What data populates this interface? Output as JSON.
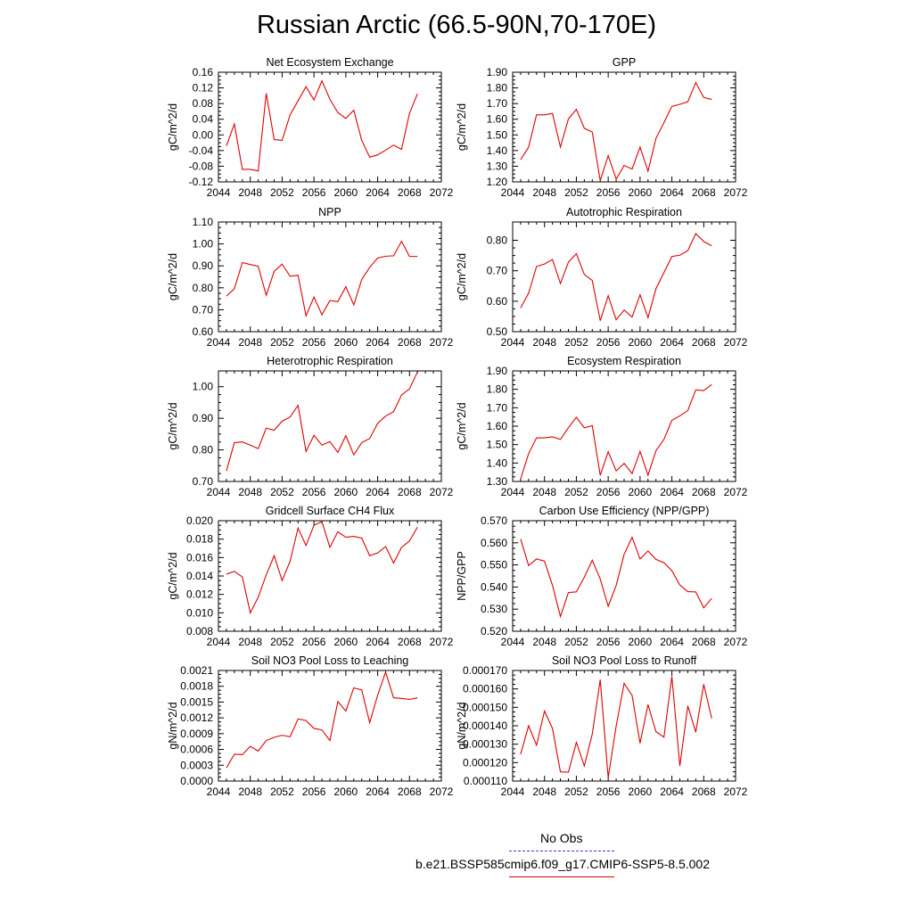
{
  "title": "Russian Arctic (66.5-90N,70-170E)",
  "colors": {
    "model": "#e00000",
    "obs": "#3a3ad6"
  },
  "legend": {
    "obs_label": "No Obs",
    "model_label": "b.e21.BSSP585cmip6.f09_g17.CMIP6-SSP5-8.5.002"
  },
  "chart_data": [
    {
      "type": "line",
      "title": "Net Ecosystem Exchange",
      "xlabel": "",
      "ylabel": "gC/m^2/d",
      "xlim": [
        2044,
        2072
      ],
      "ylim": [
        -0.12,
        0.16
      ],
      "xticks": [
        "2044",
        "2048",
        "2052",
        "2056",
        "2060",
        "2064",
        "2068",
        "2072"
      ],
      "yticks": [
        "-0.12",
        "-0.08",
        "-0.04",
        "0.00",
        "0.04",
        "0.08",
        "0.12",
        "0.16"
      ],
      "x": [
        2045,
        2046,
        2047,
        2048,
        2049,
        2050,
        2051,
        2052,
        2053,
        2054,
        2055,
        2056,
        2057,
        2058,
        2059,
        2060,
        2061,
        2062,
        2063,
        2064,
        2065,
        2066,
        2067,
        2068,
        2069
      ],
      "series": [
        {
          "values": [
            -0.028,
            0.028,
            -0.088,
            -0.088,
            -0.092,
            0.106,
            -0.012,
            -0.014,
            0.051,
            0.087,
            0.123,
            0.089,
            0.138,
            0.091,
            0.057,
            0.042,
            0.063,
            -0.014,
            -0.057,
            -0.051,
            -0.039,
            -0.026,
            -0.037,
            0.055,
            0.105
          ]
        }
      ]
    },
    {
      "type": "line",
      "title": "GPP",
      "xlabel": "",
      "ylabel": "gC/m^2/d",
      "xlim": [
        2044,
        2072
      ],
      "ylim": [
        1.2,
        1.9
      ],
      "xticks": [
        "2044",
        "2048",
        "2052",
        "2056",
        "2060",
        "2064",
        "2068",
        "2072"
      ],
      "yticks": [
        "1.20",
        "1.30",
        "1.40",
        "1.50",
        "1.60",
        "1.70",
        "1.80",
        "1.90"
      ],
      "x": [
        2045,
        2046,
        2047,
        2048,
        2049,
        2050,
        2051,
        2052,
        2053,
        2054,
        2055,
        2056,
        2057,
        2058,
        2059,
        2060,
        2061,
        2062,
        2063,
        2064,
        2065,
        2066,
        2067,
        2068,
        2069
      ],
      "series": [
        {
          "values": [
            1.342,
            1.422,
            1.628,
            1.628,
            1.637,
            1.422,
            1.602,
            1.663,
            1.542,
            1.518,
            1.208,
            1.368,
            1.218,
            1.305,
            1.282,
            1.422,
            1.268,
            1.478,
            1.578,
            1.682,
            1.695,
            1.711,
            1.834,
            1.739,
            1.726
          ]
        }
      ]
    },
    {
      "type": "line",
      "title": "NPP",
      "xlabel": "",
      "ylabel": "gC/m^2/d",
      "xlim": [
        2044,
        2072
      ],
      "ylim": [
        0.6,
        1.1
      ],
      "xticks": [
        "2044",
        "2048",
        "2052",
        "2056",
        "2060",
        "2064",
        "2068",
        "2072"
      ],
      "yticks": [
        "0.60",
        "0.70",
        "0.80",
        "0.90",
        "1.00",
        "1.10"
      ],
      "x": [
        2045,
        2046,
        2047,
        2048,
        2049,
        2050,
        2051,
        2052,
        2053,
        2054,
        2055,
        2056,
        2057,
        2058,
        2059,
        2060,
        2061,
        2062,
        2063,
        2064,
        2065,
        2066,
        2067,
        2068,
        2069
      ],
      "series": [
        {
          "values": [
            0.762,
            0.796,
            0.915,
            0.906,
            0.898,
            0.766,
            0.875,
            0.908,
            0.853,
            0.857,
            0.672,
            0.758,
            0.677,
            0.742,
            0.737,
            0.805,
            0.722,
            0.838,
            0.893,
            0.936,
            0.944,
            0.946,
            1.012,
            0.943,
            0.943
          ]
        }
      ]
    },
    {
      "type": "line",
      "title": "Autotrophic Respiration",
      "xlabel": "",
      "ylabel": "gC/m^2/d",
      "xlim": [
        2044,
        2072
      ],
      "ylim": [
        0.5,
        0.86
      ],
      "xticks": [
        "2044",
        "2048",
        "2052",
        "2056",
        "2060",
        "2064",
        "2068",
        "2072"
      ],
      "yticks": [
        "0.50",
        "0.60",
        "0.70",
        "0.80"
      ],
      "x": [
        2045,
        2046,
        2047,
        2048,
        2049,
        2050,
        2051,
        2052,
        2053,
        2054,
        2055,
        2056,
        2057,
        2058,
        2059,
        2060,
        2061,
        2062,
        2063,
        2064,
        2065,
        2066,
        2067,
        2068,
        2069
      ],
      "series": [
        {
          "values": [
            0.578,
            0.626,
            0.714,
            0.722,
            0.737,
            0.658,
            0.728,
            0.756,
            0.688,
            0.668,
            0.536,
            0.618,
            0.539,
            0.571,
            0.548,
            0.621,
            0.546,
            0.641,
            0.694,
            0.747,
            0.751,
            0.766,
            0.822,
            0.796,
            0.782
          ]
        }
      ]
    },
    {
      "type": "line",
      "title": "Heterotrophic Respiration",
      "xlabel": "",
      "ylabel": "gC/m^2/d",
      "xlim": [
        2044,
        2072
      ],
      "ylim": [
        0.7,
        1.05
      ],
      "xticks": [
        "2044",
        "2048",
        "2052",
        "2056",
        "2060",
        "2064",
        "2068",
        "2072"
      ],
      "yticks": [
        "0.70",
        "0.80",
        "0.90",
        "1.00"
      ],
      "x": [
        2045,
        2046,
        2047,
        2048,
        2049,
        2050,
        2051,
        2052,
        2053,
        2054,
        2055,
        2056,
        2057,
        2058,
        2059,
        2060,
        2061,
        2062,
        2063,
        2064,
        2065,
        2066,
        2067,
        2068,
        2069
      ],
      "series": [
        {
          "values": [
            0.733,
            0.823,
            0.825,
            0.815,
            0.804,
            0.869,
            0.862,
            0.891,
            0.904,
            0.941,
            0.795,
            0.846,
            0.815,
            0.826,
            0.792,
            0.845,
            0.784,
            0.823,
            0.836,
            0.884,
            0.907,
            0.921,
            0.974,
            0.993,
            1.047
          ]
        }
      ]
    },
    {
      "type": "line",
      "title": "Ecosystem Respiration",
      "xlabel": "",
      "ylabel": "gC/m^2/d",
      "xlim": [
        2044,
        2072
      ],
      "ylim": [
        1.3,
        1.9
      ],
      "xticks": [
        "2044",
        "2048",
        "2052",
        "2056",
        "2060",
        "2064",
        "2068",
        "2072"
      ],
      "yticks": [
        "1.30",
        "1.40",
        "1.50",
        "1.60",
        "1.70",
        "1.80",
        "1.90"
      ],
      "x": [
        2045,
        2046,
        2047,
        2048,
        2049,
        2050,
        2051,
        2052,
        2053,
        2054,
        2055,
        2056,
        2057,
        2058,
        2059,
        2060,
        2061,
        2062,
        2063,
        2064,
        2065,
        2066,
        2067,
        2068,
        2069
      ],
      "series": [
        {
          "values": [
            1.314,
            1.451,
            1.537,
            1.537,
            1.542,
            1.528,
            1.592,
            1.648,
            1.591,
            1.603,
            1.333,
            1.462,
            1.357,
            1.398,
            1.343,
            1.463,
            1.334,
            1.467,
            1.528,
            1.632,
            1.656,
            1.685,
            1.797,
            1.793,
            1.826
          ]
        }
      ]
    },
    {
      "type": "line",
      "title": "Gridcell Surface CH4 Flux",
      "xlabel": "",
      "ylabel": "gC/m^2/d",
      "xlim": [
        2044,
        2072
      ],
      "ylim": [
        0.008,
        0.02
      ],
      "xticks": [
        "2044",
        "2048",
        "2052",
        "2056",
        "2060",
        "2064",
        "2068",
        "2072"
      ],
      "yticks": [
        "0.008",
        "0.010",
        "0.012",
        "0.014",
        "0.016",
        "0.018",
        "0.020"
      ],
      "x": [
        2045,
        2046,
        2047,
        2048,
        2049,
        2050,
        2051,
        2052,
        2053,
        2054,
        2055,
        2056,
        2057,
        2058,
        2059,
        2060,
        2061,
        2062,
        2063,
        2064,
        2065,
        2066,
        2067,
        2068,
        2069
      ],
      "series": [
        {
          "values": [
            0.0142,
            0.0145,
            0.0139,
            0.01,
            0.0117,
            0.0141,
            0.0162,
            0.0135,
            0.0156,
            0.0192,
            0.0173,
            0.0195,
            0.0199,
            0.0171,
            0.0188,
            0.0182,
            0.0183,
            0.0181,
            0.0162,
            0.0165,
            0.0172,
            0.0154,
            0.0171,
            0.0178,
            0.0193
          ]
        }
      ]
    },
    {
      "type": "line",
      "title": "Carbon Use Efficiency (NPP/GPP)",
      "xlabel": "",
      "ylabel": "NPP/GPP",
      "xlim": [
        2044,
        2072
      ],
      "ylim": [
        0.52,
        0.57
      ],
      "xticks": [
        "2044",
        "2048",
        "2052",
        "2056",
        "2060",
        "2064",
        "2068",
        "2072"
      ],
      "yticks": [
        "0.520",
        "0.530",
        "0.540",
        "0.550",
        "0.560",
        "0.570"
      ],
      "x": [
        2045,
        2046,
        2047,
        2048,
        2049,
        2050,
        2051,
        2052,
        2053,
        2054,
        2055,
        2056,
        2057,
        2058,
        2059,
        2060,
        2061,
        2062,
        2063,
        2064,
        2065,
        2066,
        2067,
        2068,
        2069
      ],
      "series": [
        {
          "values": [
            0.5617,
            0.5497,
            0.5527,
            0.5517,
            0.5408,
            0.5267,
            0.5375,
            0.5378,
            0.5445,
            0.5521,
            0.5436,
            0.5313,
            0.5407,
            0.5548,
            0.5625,
            0.5527,
            0.5563,
            0.5525,
            0.551,
            0.5474,
            0.5409,
            0.5379,
            0.5378,
            0.5306,
            0.5349
          ]
        }
      ]
    },
    {
      "type": "line",
      "title": "Soil NO3 Pool Loss to Leaching",
      "xlabel": "",
      "ylabel": "gN/m^2/d",
      "xlim": [
        2044,
        2072
      ],
      "ylim": [
        0,
        0.0021
      ],
      "xticks": [
        "2044",
        "2048",
        "2052",
        "2056",
        "2060",
        "2064",
        "2068",
        "2072"
      ],
      "yticks": [
        "0.0000",
        "0.0003",
        "0.0006",
        "0.0009",
        "0.0012",
        "0.0015",
        "0.0018",
        "0.0021"
      ],
      "x": [
        2045,
        2046,
        2047,
        2048,
        2049,
        2050,
        2051,
        2052,
        2053,
        2054,
        2055,
        2056,
        2057,
        2058,
        2059,
        2060,
        2061,
        2062,
        2063,
        2064,
        2065,
        2066,
        2067,
        2068,
        2069
      ],
      "series": [
        {
          "values": [
            0.00025,
            0.00051,
            0.0005,
            0.00066,
            0.00057,
            0.00077,
            0.00083,
            0.00087,
            0.00084,
            0.00118,
            0.00115,
            0.001,
            0.00097,
            0.00077,
            0.00151,
            0.00133,
            0.00177,
            0.00173,
            0.00111,
            0.00163,
            0.00207,
            0.00158,
            0.00157,
            0.00155,
            0.00158
          ]
        }
      ]
    },
    {
      "type": "line",
      "title": "Soil NO3 Pool Loss to Runoff",
      "xlabel": "",
      "ylabel": "gN/m^2/d",
      "xlim": [
        2044,
        2072
      ],
      "ylim": [
        0.00011,
        0.00017
      ],
      "xticks": [
        "2044",
        "2048",
        "2052",
        "2056",
        "2060",
        "2064",
        "2068",
        "2072"
      ],
      "yticks": [
        "0.000110",
        "0.000120",
        "0.000130",
        "0.000140",
        "0.000150",
        "0.000160",
        "0.000170"
      ],
      "x": [
        2045,
        2046,
        2047,
        2048,
        2049,
        2050,
        2051,
        2052,
        2053,
        2054,
        2055,
        2056,
        2057,
        2058,
        2059,
        2060,
        2061,
        2062,
        2063,
        2064,
        2065,
        2066,
        2067,
        2068,
        2069
      ],
      "series": [
        {
          "values": [
            0.0001245,
            0.00014,
            0.0001295,
            0.000148,
            0.0001385,
            0.000115,
            0.0001148,
            0.000131,
            0.0001182,
            0.0001355,
            0.000165,
            0.0001118,
            0.0001398,
            0.000163,
            0.0001565,
            0.0001305,
            0.0001515,
            0.0001368,
            0.0001338,
            0.0001668,
            0.0001182,
            0.0001508,
            0.0001365,
            0.0001625,
            0.000144
          ]
        }
      ]
    }
  ]
}
